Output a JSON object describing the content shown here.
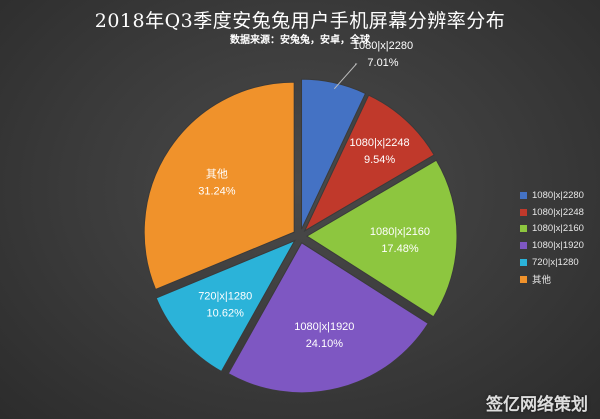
{
  "chart_data": {
    "type": "pie",
    "title": "2018年Q3季度安兔兔用户手机屏幕分辨率分布",
    "subtitle": "数据来源：安兔兔，安卓，全球",
    "categories": [
      "1080|x|2280",
      "1080|x|2248",
      "1080|x|2160",
      "1080|x|1920",
      "720|x|1280",
      "其他"
    ],
    "values": [
      7.01,
      9.54,
      17.48,
      24.1,
      10.62,
      31.24
    ],
    "value_labels": [
      "7.01%",
      "9.54%",
      "17.48%",
      "24.10%",
      "10.62%",
      "31.24%"
    ],
    "colors": [
      "#4472c4",
      "#c0392b",
      "#8dc63f",
      "#7e57c2",
      "#2bb3d9",
      "#f0922b"
    ],
    "legend_position": "right",
    "exploded": true
  },
  "watermark": "签亿网络策划"
}
